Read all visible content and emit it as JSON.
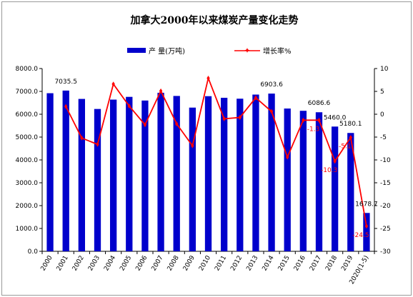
{
  "chart_data": {
    "type": "bar",
    "title": "加拿大2000年以来煤炭产量变化走势",
    "categories": [
      "2000",
      "2001",
      "2002",
      "2003",
      "2004",
      "2005",
      "2006",
      "2007",
      "2008",
      "2009",
      "2010",
      "2011",
      "2012",
      "2013",
      "2014",
      "2015",
      "2016",
      "2017",
      "2018",
      "2019",
      "2020(1-5)"
    ],
    "series": [
      {
        "name": "产 量(万吨)",
        "type": "bar",
        "axis": "left",
        "color": "#0000cc",
        "values": [
          6920,
          7035.5,
          6670,
          6230,
          6640,
          6760,
          6600,
          6940,
          6800,
          6290,
          6790,
          6720,
          6680,
          6860,
          6903.6,
          6250,
          6150,
          6086.6,
          5460.0,
          5180.1,
          1678.7
        ]
      },
      {
        "name": "增长率%",
        "type": "line",
        "axis": "right",
        "color": "#ff0000",
        "values": [
          null,
          1.7,
          -5.2,
          -6.6,
          6.6,
          1.8,
          -2.3,
          5.1,
          -2.1,
          -6.9,
          7.9,
          -1.0,
          -0.7,
          3.6,
          0.6,
          -9.4,
          -1.3,
          -1.3,
          -10.3,
          -5.1,
          -24.5
        ]
      }
    ],
    "y_left": {
      "min": 0,
      "max": 8000,
      "step": 1000,
      "tick_format": "0.0"
    },
    "y_right": {
      "min": -30,
      "max": 10,
      "step": 5
    },
    "legend_position": "top",
    "grid": false,
    "bar_labels": [
      {
        "index": 1,
        "text": "7035.5"
      },
      {
        "index": 14,
        "text": "6903.6"
      },
      {
        "index": 17,
        "text": "6086.6"
      },
      {
        "index": 18,
        "text": "5460.0"
      },
      {
        "index": 19,
        "text": "5180.1"
      },
      {
        "index": 20,
        "text": "1678.7"
      }
    ],
    "line_labels": [
      {
        "index": 17,
        "text": "-1.3"
      },
      {
        "index": 18,
        "text": "-10.3"
      },
      {
        "index": 19,
        "text": "-5.1"
      },
      {
        "index": 20,
        "text": "-24.5"
      }
    ]
  }
}
